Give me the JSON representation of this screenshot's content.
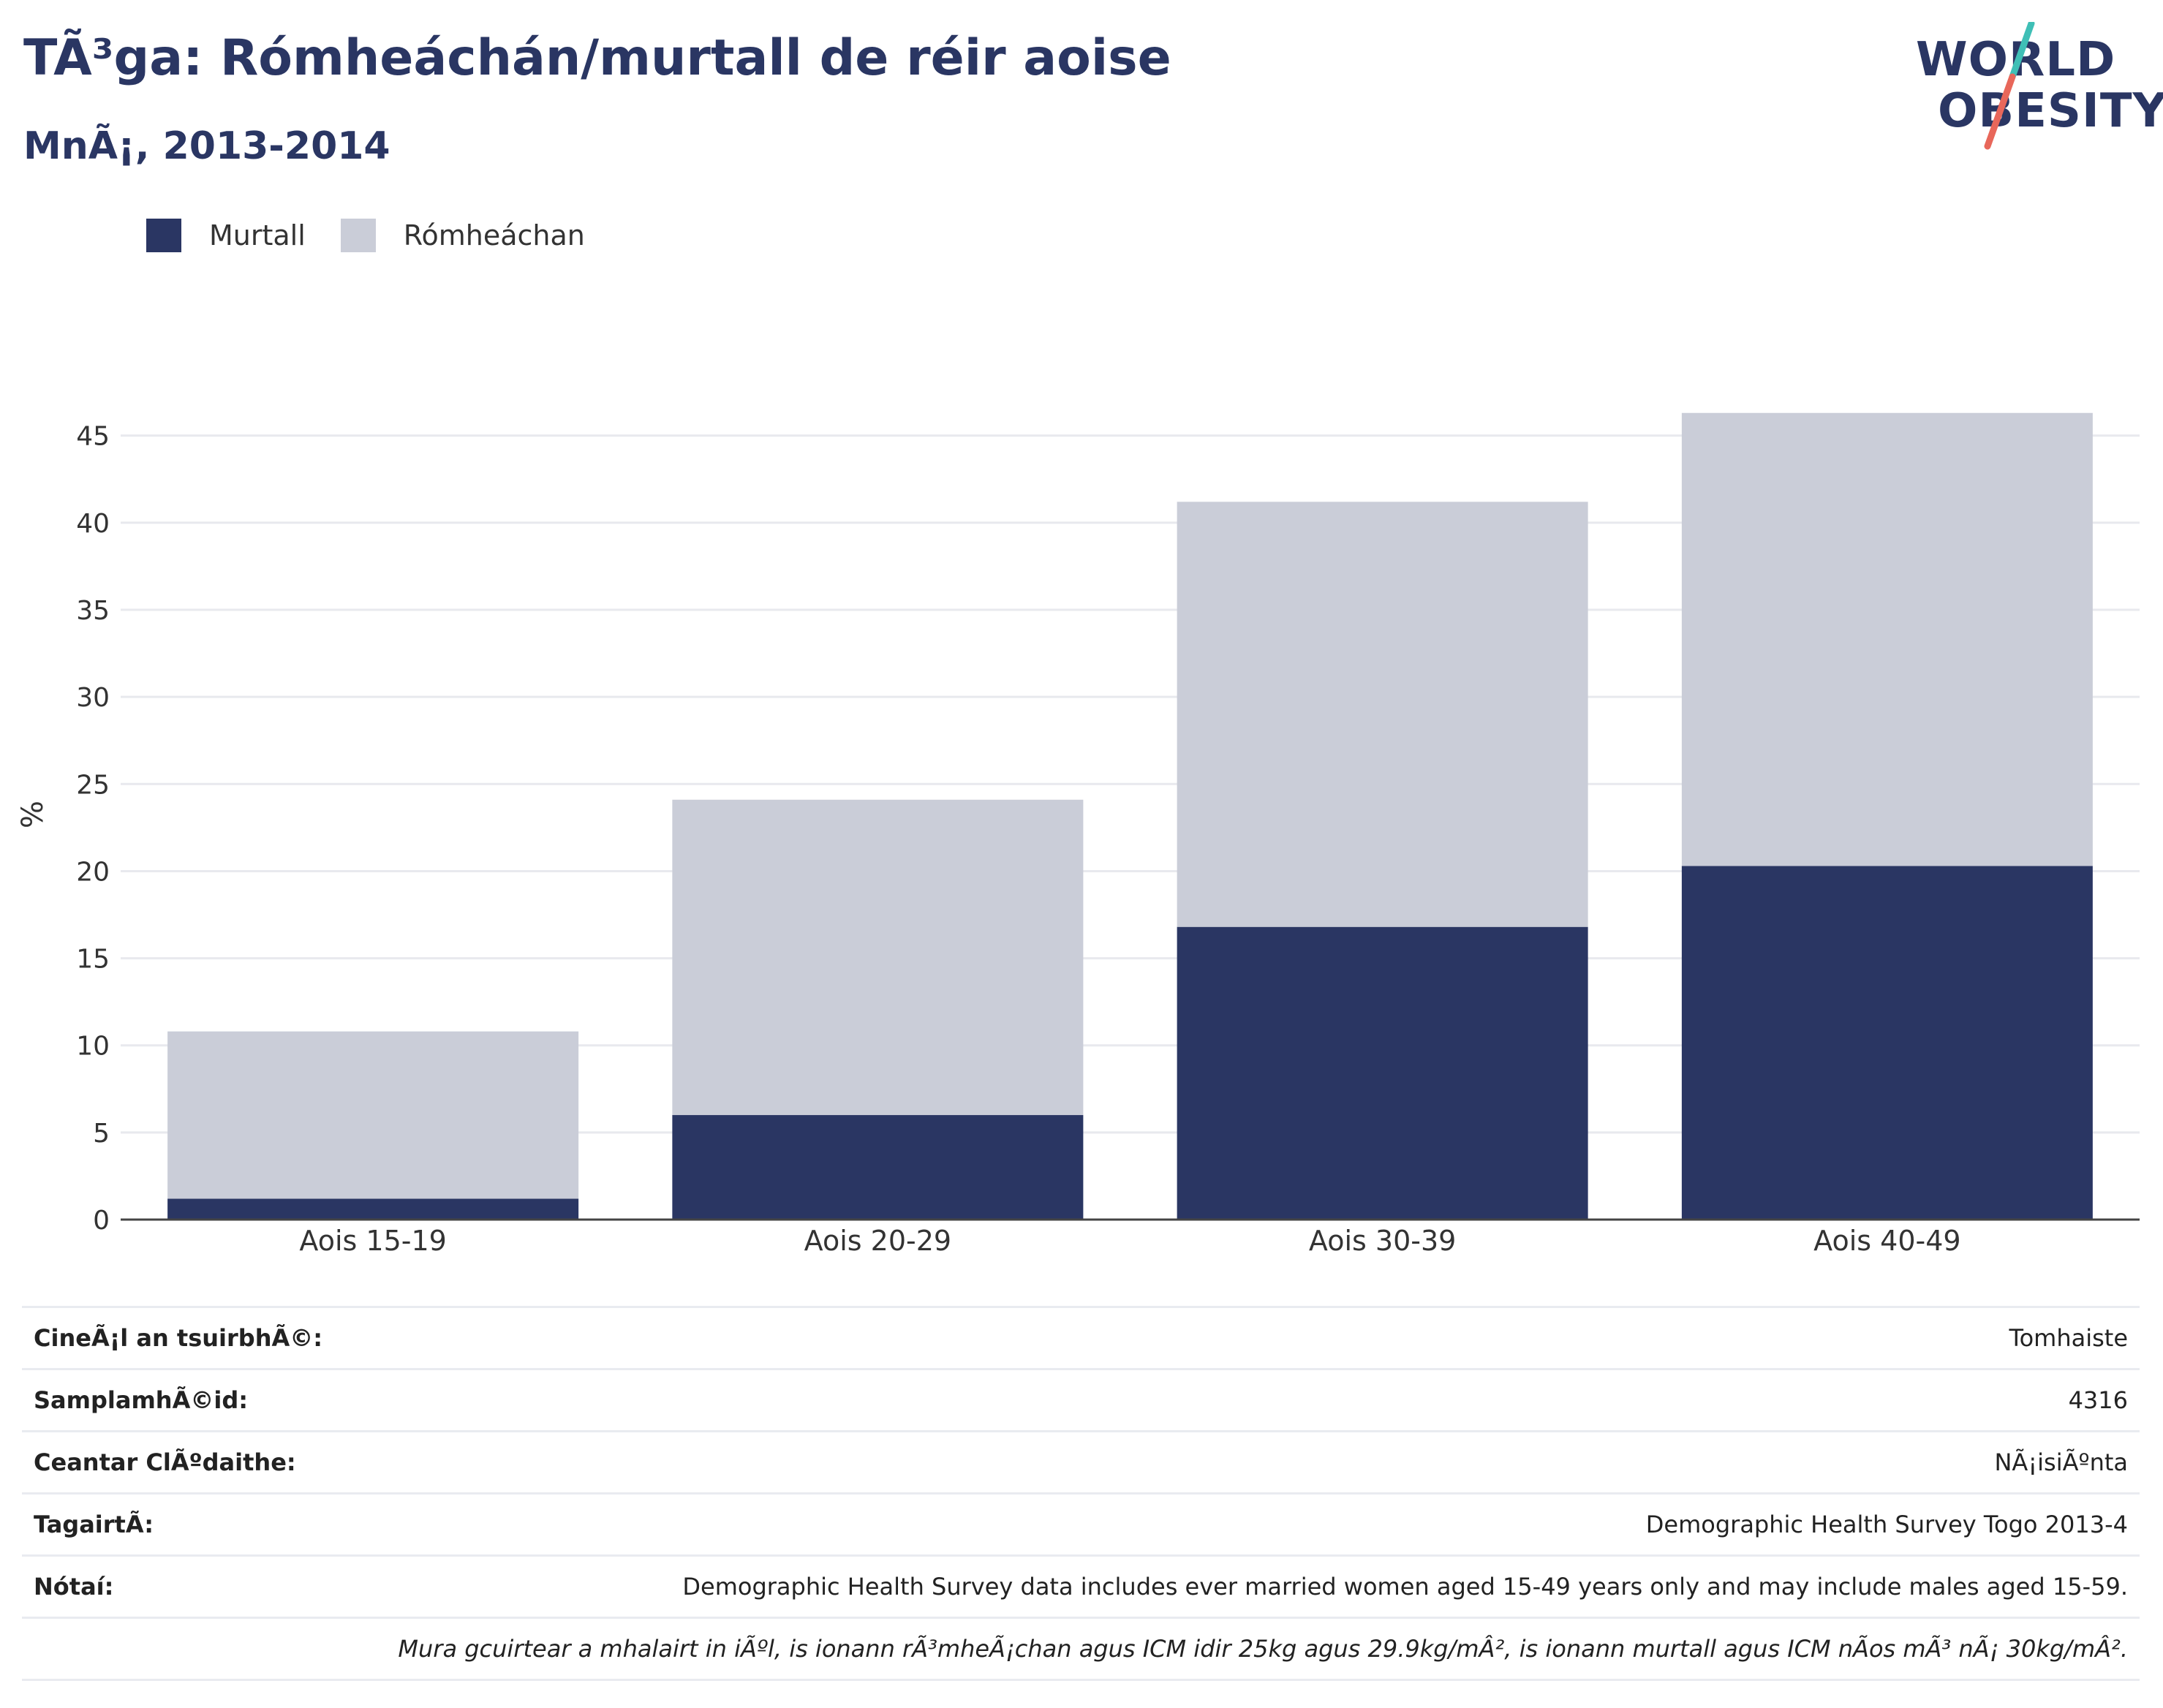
{
  "header": {
    "title": "TÃ³ga: Rómheáchán/murtall de réir aoise",
    "subtitle": "MnÃ¡, 2013-2014"
  },
  "logo": {
    "line1": "WORLD",
    "line2": "OBESITY",
    "colors": {
      "text": "#2a3663",
      "slash_top": "#3fbfb6",
      "slash_bottom": "#e8675a"
    }
  },
  "legend": {
    "items": [
      {
        "label": "Murtall",
        "color": "#2a3663"
      },
      {
        "label": "Rómheáchan",
        "color": "#cacdd8"
      }
    ]
  },
  "chart_data": {
    "type": "bar",
    "stacked": true,
    "categories": [
      "Aois 15-19",
      "Aois 20-29",
      "Aois 30-39",
      "Aois 40-49"
    ],
    "series": [
      {
        "name": "Murtall",
        "color": "#2a3663",
        "values": [
          1.2,
          6.0,
          16.8,
          20.3
        ]
      },
      {
        "name": "Rómheáchan",
        "color": "#cacdd8",
        "values": [
          9.6,
          18.1,
          24.4,
          26.0
        ]
      }
    ],
    "ylabel": "%",
    "xlabel": "",
    "ylim": [
      0,
      46.5
    ],
    "yticks": [
      0,
      5,
      10,
      15,
      20,
      25,
      30,
      35,
      40,
      45
    ],
    "grid": true,
    "legend_position": "top-left"
  },
  "meta": {
    "rows": [
      {
        "key": "CineÃ¡l an tsuirbhÃ©:",
        "value": "Tomhaiste"
      },
      {
        "key": "SamplamhÃ©id:",
        "value": "4316"
      },
      {
        "key": "Ceantar ClÃºdaithe:",
        "value": "NÃ¡isiÃºnta"
      },
      {
        "key": "TagairtÃ:",
        "value": "Demographic Health Survey Togo 2013-4"
      },
      {
        "key": "Nótaí:",
        "value": "Demographic Health Survey data includes ever married women aged 15-49 years only and may include males aged 15-59."
      }
    ],
    "footnote": "Mura gcuirtear a mhalairt in iÃºl, is ionann rÃ³mheÃ¡chan agus ICM idir 25kg agus 29.9kg/mÂ², is ionann murtall agus ICM nÃos mÃ³ nÃ¡ 30kg/mÂ²."
  }
}
